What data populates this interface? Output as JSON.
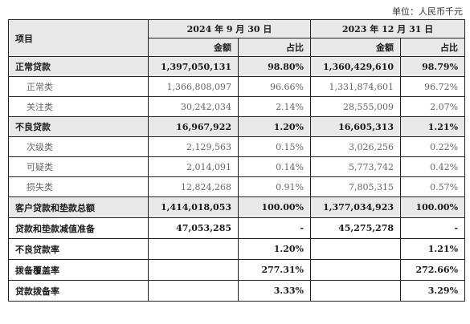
{
  "unit_label": "单位：人民币千元",
  "header": {
    "item": "项目",
    "period1": "2024 年 9 月 30 日",
    "period2": "2023 年 12 月 31 日",
    "amount": "金额",
    "ratio": "占比"
  },
  "rows": [
    {
      "label": "正常贷款",
      "a1": "1,397,050,131",
      "r1": "98.80%",
      "a2": "1,360,429,610",
      "r2": "98.79%"
    },
    {
      "label": "正常类",
      "a1": "1,366,808,097",
      "r1": "96.66%",
      "a2": "1,331,874,601",
      "r2": "96.72%"
    },
    {
      "label": "关注类",
      "a1": "30,242,034",
      "r1": "2.14%",
      "a2": "28,555,009",
      "r2": "2.07%"
    },
    {
      "label": "不良贷款",
      "a1": "16,967,922",
      "r1": "1.20%",
      "a2": "16,605,313",
      "r2": "1.21%"
    },
    {
      "label": "次级类",
      "a1": "2,129,563",
      "r1": "0.15%",
      "a2": "3,026,256",
      "r2": "0.22%"
    },
    {
      "label": "可疑类",
      "a1": "2,014,091",
      "r1": "0.14%",
      "a2": "5,773,742",
      "r2": "0.42%"
    },
    {
      "label": "损失类",
      "a1": "12,824,268",
      "r1": "0.91%",
      "a2": "7,805,315",
      "r2": "0.57%"
    },
    {
      "label": "客户贷款和垫款总额",
      "a1": "1,414,018,053",
      "r1": "100.00%",
      "a2": "1,377,034,923",
      "r2": "100.00%"
    },
    {
      "label": "贷款和垫款减值准备",
      "a1": "47,053,285",
      "r1": "-",
      "a2": "45,275,278",
      "r2": "-"
    },
    {
      "label": "不良贷款率",
      "a1": "",
      "r1": "1.20%",
      "a2": "",
      "r2": "1.21%"
    },
    {
      "label": "拨备覆盖率",
      "a1": "",
      "r1": "277.31%",
      "a2": "",
      "r2": "272.66%"
    },
    {
      "label": "贷款拨备率",
      "a1": "",
      "r1": "3.33%",
      "a2": "",
      "r2": "3.29%"
    }
  ]
}
